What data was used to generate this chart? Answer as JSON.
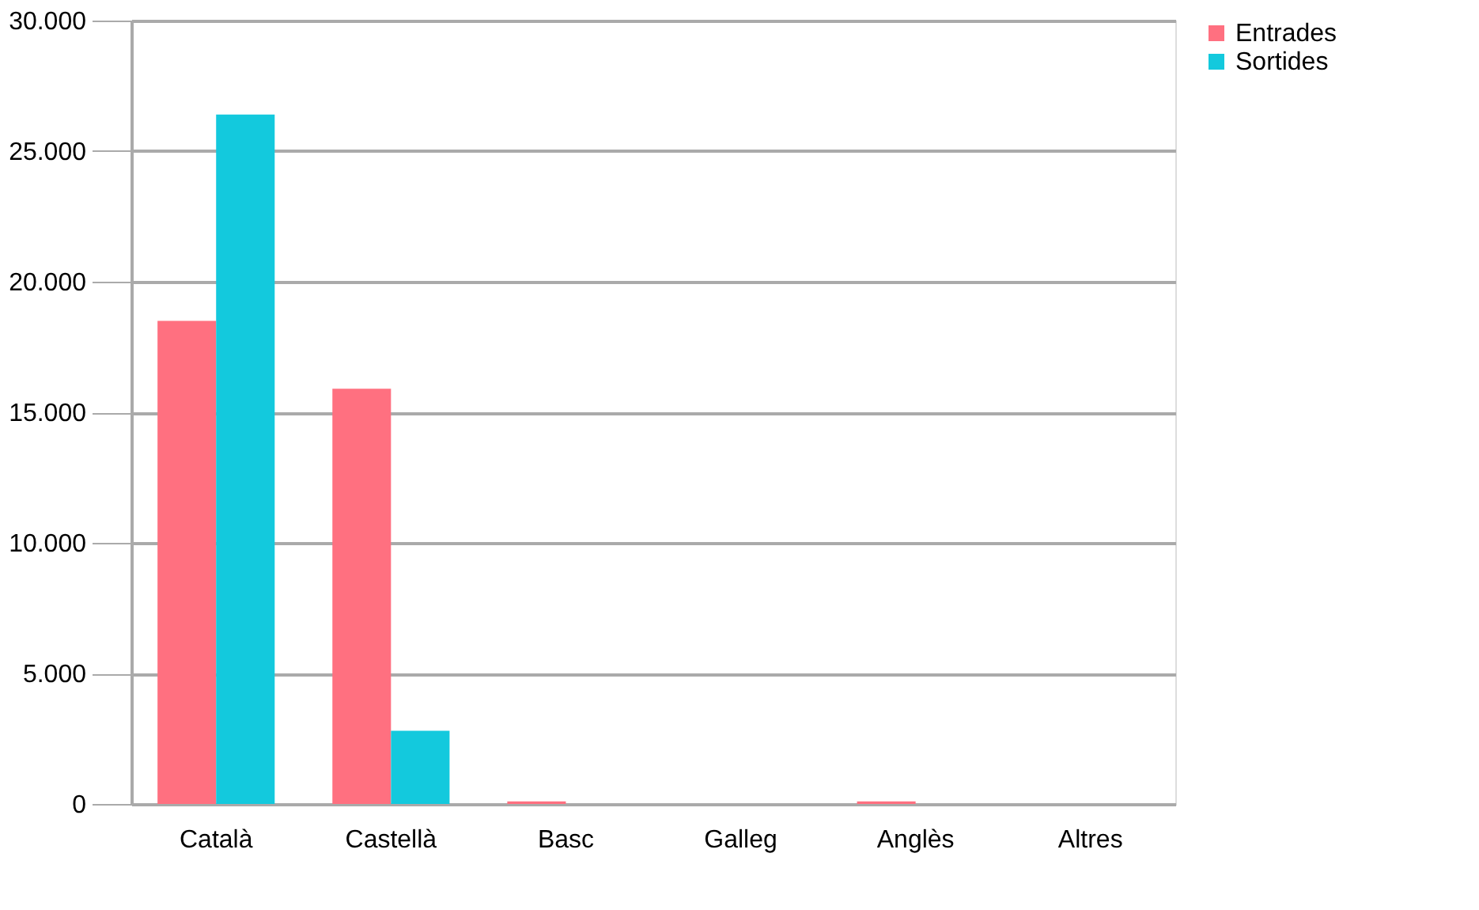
{
  "chart_data": {
    "type": "bar",
    "categories": [
      "Català",
      "Castellà",
      "Basc",
      "Galleg",
      "Anglès",
      "Altres"
    ],
    "series": [
      {
        "name": "Entrades",
        "color": "#ff7080",
        "values": [
          18500,
          15900,
          100,
          0,
          100,
          0
        ]
      },
      {
        "name": "Sortides",
        "color": "#13c9dd",
        "values": [
          26400,
          2800,
          0,
          0,
          0,
          0
        ]
      }
    ],
    "ylim": [
      0,
      30000
    ],
    "yticks": [
      {
        "value": 0,
        "label": "0"
      },
      {
        "value": 5000,
        "label": "5.000"
      },
      {
        "value": 10000,
        "label": "10.000"
      },
      {
        "value": 15000,
        "label": "15.000"
      },
      {
        "value": 20000,
        "label": "20.000"
      },
      {
        "value": 25000,
        "label": "25.000"
      },
      {
        "value": 30000,
        "label": "30.000"
      }
    ],
    "grid": "y",
    "legend": "right"
  }
}
